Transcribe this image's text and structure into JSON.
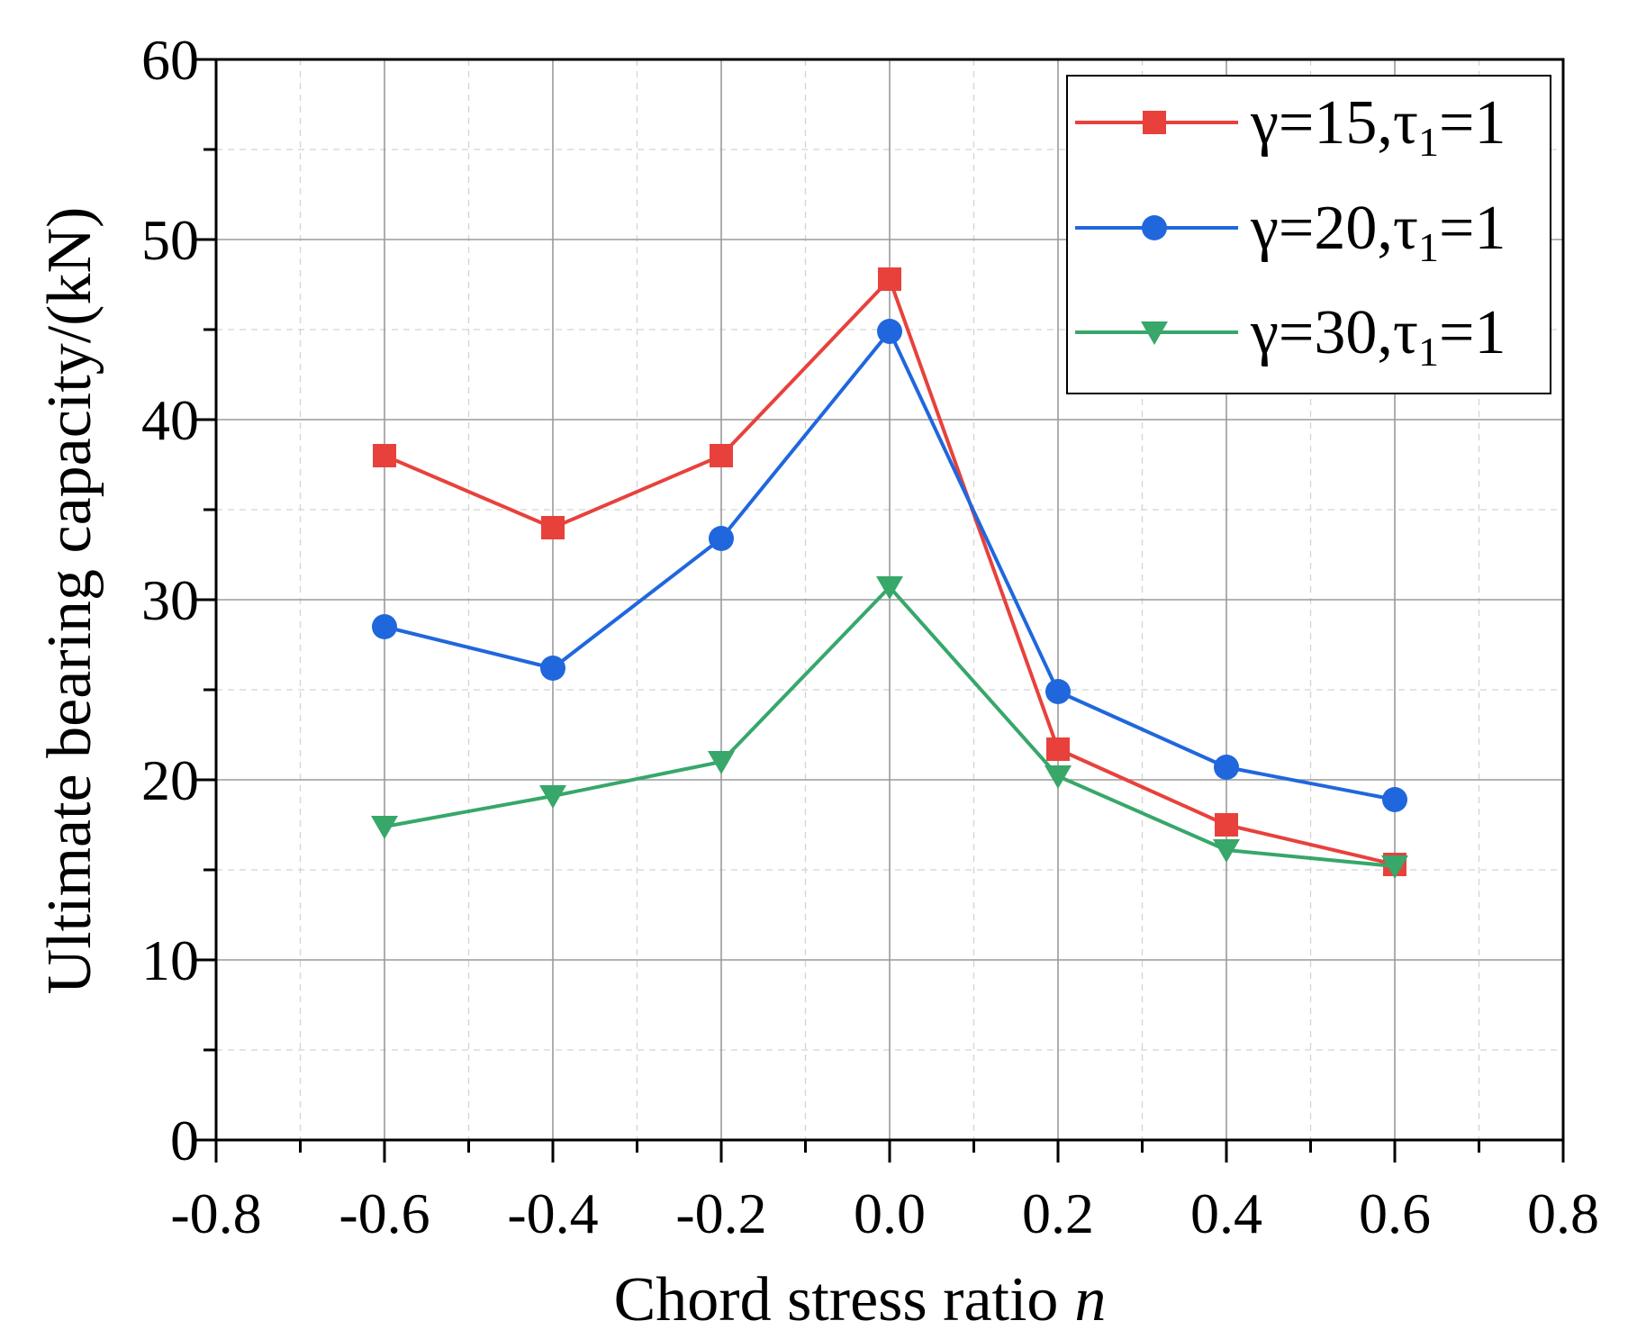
{
  "chart_data": {
    "type": "line",
    "title": "",
    "xlabel": "Chord stress ratio",
    "xlabel_italic": "n",
    "ylabel": "Ultimate bearing capacity/(kN)",
    "xlim": [
      -0.8,
      0.8
    ],
    "ylim": [
      0,
      60
    ],
    "x_ticks": [
      "-0.8",
      "-0.6",
      "-0.4",
      "-0.2",
      "0.0",
      "0.2",
      "0.4",
      "0.6",
      "0.8"
    ],
    "y_ticks": [
      "0",
      "10",
      "20",
      "30",
      "40",
      "50",
      "60"
    ],
    "grid": true,
    "legend_position": "top-right",
    "x": [
      -0.6,
      -0.4,
      -0.2,
      0.0,
      0.2,
      0.4,
      0.6
    ],
    "series": [
      {
        "label_main": "γ=15,τ",
        "label_sub": "1",
        "label_tail": "=1",
        "color": "#e8413c",
        "marker": "square",
        "values": [
          38.0,
          34.0,
          38.0,
          47.8,
          21.7,
          17.5,
          15.3
        ]
      },
      {
        "label_main": "γ=20,τ",
        "label_sub": "1",
        "label_tail": "=1",
        "color": "#2067dd",
        "marker": "circle",
        "values": [
          28.5,
          26.2,
          33.4,
          44.9,
          24.9,
          20.7,
          18.9
        ]
      },
      {
        "label_main": "γ=30,τ",
        "label_sub": "1",
        "label_tail": "=1",
        "color": "#37a76a",
        "marker": "triangle-down",
        "values": [
          17.4,
          19.1,
          21.0,
          30.7,
          20.2,
          16.1,
          15.2
        ]
      }
    ]
  }
}
